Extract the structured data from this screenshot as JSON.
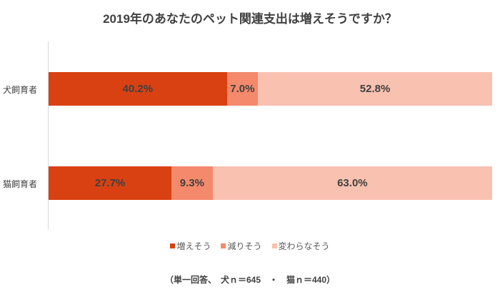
{
  "title": "2019年のあなたのペット関連支出は増えそうですか？",
  "note": "（単一回答、　犬ｎ＝645　・　猫ｎ＝440）",
  "colors": {
    "increase": "#d94112",
    "decrease": "#f4896b",
    "unchanged": "#f8c1b0"
  },
  "legend": [
    {
      "label": "増えそう",
      "color": "#d94112"
    },
    {
      "label": "減りそう",
      "color": "#f4896b"
    },
    {
      "label": "変わらなそう",
      "color": "#f8c1b0"
    }
  ],
  "rows": [
    {
      "label": "犬飼育者",
      "segments": [
        {
          "value": 40.2,
          "text": "40.2%"
        },
        {
          "value": 7.0,
          "text": "7.0%"
        },
        {
          "value": 52.8,
          "text": "52.8%"
        }
      ]
    },
    {
      "label": "猫飼育者",
      "segments": [
        {
          "value": 27.7,
          "text": "27.7%"
        },
        {
          "value": 9.3,
          "text": "9.3%"
        },
        {
          "value": 63.0,
          "text": "63.0%"
        }
      ]
    }
  ],
  "chart_data": {
    "type": "bar",
    "orientation": "horizontal",
    "stacked": true,
    "percent_stacked": true,
    "title": "2019年のあなたのペット関連支出は増えそうですか？",
    "categories": [
      "犬飼育者",
      "猫飼育者"
    ],
    "series": [
      {
        "name": "増えそう",
        "values": [
          40.2,
          27.7
        ],
        "color": "#d94112"
      },
      {
        "name": "減りそう",
        "values": [
          7.0,
          9.3
        ],
        "color": "#f4896b"
      },
      {
        "name": "変わらなそう",
        "values": [
          52.8,
          63.0
        ],
        "color": "#f8c1b0"
      }
    ],
    "xlabel": "",
    "ylabel": "",
    "xlim": [
      0,
      100
    ],
    "grid": false,
    "legend_position": "bottom",
    "data_labels": true,
    "annotations": [
      "（単一回答、　犬ｎ＝645　・　猫ｎ＝440）"
    ]
  }
}
